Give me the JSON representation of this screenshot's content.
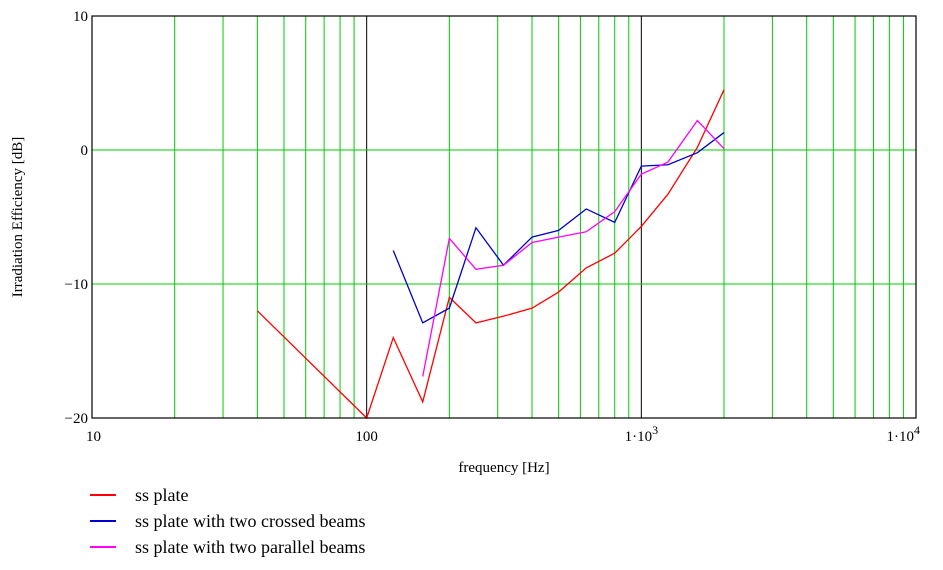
{
  "chart_data": {
    "type": "line",
    "xscale": "log",
    "xlim": [
      10,
      10000
    ],
    "ylim": [
      -20,
      10
    ],
    "grid": true,
    "xlabel": "frequency [Hz]",
    "ylabel": "Irradiation Efficiency [dB]",
    "x_tick_labels": [
      {
        "value": 10,
        "text": "10"
      },
      {
        "value": 100,
        "text": "100"
      },
      {
        "value": 1000,
        "text": "1·10",
        "sup": "3"
      },
      {
        "value": 10000,
        "text": "1·10",
        "sup": "4"
      }
    ],
    "y_tick_labels": [
      {
        "value": 10,
        "text": "10"
      },
      {
        "value": 0,
        "text": "0"
      },
      {
        "value": -10,
        "text": "−10"
      },
      {
        "value": -20,
        "text": "−20"
      }
    ],
    "legend_position": "bottom-left",
    "series": [
      {
        "name": "ss plate",
        "color": "#ff0000",
        "points": [
          [
            40,
            -12
          ],
          [
            100,
            -20
          ],
          [
            125,
            -14
          ],
          [
            160,
            -18.8
          ],
          [
            200,
            -11
          ],
          [
            250,
            -12.9
          ],
          [
            315,
            -12.4
          ],
          [
            400,
            -11.8
          ],
          [
            500,
            -10.6
          ],
          [
            630,
            -8.8
          ],
          [
            800,
            -7.7
          ],
          [
            1000,
            -5.7
          ],
          [
            1250,
            -3.3
          ],
          [
            1600,
            0.2
          ],
          [
            2000,
            4.5
          ]
        ]
      },
      {
        "name": "ss plate with two crossed beams",
        "color": "#0000cc",
        "points": [
          [
            125,
            -7.5
          ],
          [
            160,
            -12.9
          ],
          [
            200,
            -11.8
          ],
          [
            250,
            -5.8
          ],
          [
            315,
            -8.6
          ],
          [
            400,
            -6.5
          ],
          [
            500,
            -6
          ],
          [
            630,
            -4.4
          ],
          [
            800,
            -5.4
          ],
          [
            1000,
            -1.2
          ],
          [
            1250,
            -1.1
          ],
          [
            1600,
            -0.2
          ],
          [
            2000,
            1.3
          ]
        ]
      },
      {
        "name": "ss plate with two parallel beams",
        "color": "#ff00ff",
        "points": [
          [
            160,
            -16.9
          ],
          [
            200,
            -6.6
          ],
          [
            250,
            -8.9
          ],
          [
            315,
            -8.6
          ],
          [
            400,
            -6.9
          ],
          [
            500,
            -6.5
          ],
          [
            630,
            -6.1
          ],
          [
            800,
            -4.6
          ],
          [
            1000,
            -1.8
          ],
          [
            1250,
            -0.9
          ],
          [
            1600,
            2.2
          ],
          [
            2000,
            0.1
          ]
        ]
      }
    ]
  },
  "legend": {
    "items": [
      {
        "label": "ss plate",
        "color": "#ff0000"
      },
      {
        "label": "ss plate with two crossed beams",
        "color": "#0000cc"
      },
      {
        "label": "ss plate with two parallel beams",
        "color": "#ff00ff"
      }
    ]
  },
  "colors": {
    "grid_minor": "#00cc00",
    "grid_decade": "#000000",
    "frame": "#000000"
  }
}
